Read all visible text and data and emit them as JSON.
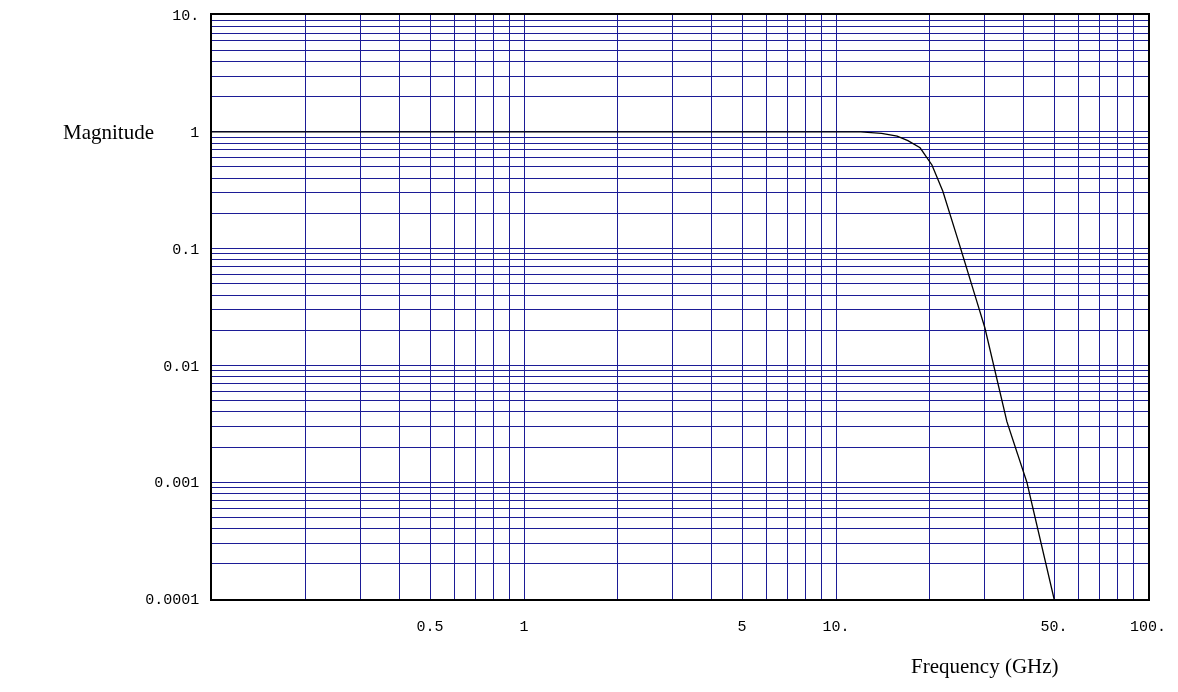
{
  "chart_data": {
    "type": "line",
    "xlabel": "Frequency (GHz)",
    "ylabel": "Magnitude",
    "log": "xy",
    "grid": true,
    "marker": "none",
    "line_style": "solid",
    "xlim": [
      0.1,
      100
    ],
    "ylim": [
      0.0001,
      10
    ],
    "xticks": [
      {
        "value": 0.2,
        "label": null
      },
      {
        "value": 0.3,
        "label": null
      },
      {
        "value": 0.4,
        "label": null
      },
      {
        "value": 0.5,
        "label": "0.5"
      },
      {
        "value": 0.6,
        "label": null
      },
      {
        "value": 0.7,
        "label": null
      },
      {
        "value": 0.8,
        "label": null
      },
      {
        "value": 0.9,
        "label": null
      },
      {
        "value": 1,
        "label": "1"
      },
      {
        "value": 2,
        "label": null
      },
      {
        "value": 3,
        "label": null
      },
      {
        "value": 4,
        "label": null
      },
      {
        "value": 5,
        "label": "5"
      },
      {
        "value": 6,
        "label": null
      },
      {
        "value": 7,
        "label": null
      },
      {
        "value": 8,
        "label": null
      },
      {
        "value": 9,
        "label": null
      },
      {
        "value": 10,
        "label": "10."
      },
      {
        "value": 20,
        "label": null
      },
      {
        "value": 30,
        "label": null
      },
      {
        "value": 40,
        "label": null
      },
      {
        "value": 50,
        "label": "50."
      },
      {
        "value": 60,
        "label": null
      },
      {
        "value": 70,
        "label": null
      },
      {
        "value": 80,
        "label": null
      },
      {
        "value": 90,
        "label": null
      },
      {
        "value": 100,
        "label": "100."
      }
    ],
    "yticks": [
      0.0001,
      {
        "value": 0.0002,
        "label": null
      },
      {
        "value": 0.0003,
        "label": null
      },
      {
        "value": 0.0004,
        "label": null
      },
      {
        "value": 0.0005,
        "label": null
      },
      {
        "value": 0.0006,
        "label": null
      },
      {
        "value": 0.0007,
        "label": null
      },
      {
        "value": 0.0008,
        "label": null
      },
      {
        "value": 0.0009,
        "label": null
      },
      0.001,
      {
        "value": 0.002,
        "label": null
      },
      {
        "value": 0.003,
        "label": null
      },
      {
        "value": 0.004,
        "label": null
      },
      {
        "value": 0.005,
        "label": null
      },
      {
        "value": 0.006,
        "label": null
      },
      {
        "value": 0.007,
        "label": null
      },
      {
        "value": 0.008,
        "label": null
      },
      {
        "value": 0.009,
        "label": null
      },
      0.01,
      {
        "value": 0.02,
        "label": null
      },
      {
        "value": 0.03,
        "label": null
      },
      {
        "value": 0.04,
        "label": null
      },
      {
        "value": 0.05,
        "label": null
      },
      {
        "value": 0.06,
        "label": null
      },
      {
        "value": 0.07,
        "label": null
      },
      {
        "value": 0.08,
        "label": null
      },
      {
        "value": 0.09,
        "label": null
      },
      0.1,
      {
        "value": 0.2,
        "label": null
      },
      {
        "value": 0.3,
        "label": null
      },
      {
        "value": 0.4,
        "label": null
      },
      {
        "value": 0.5,
        "label": null
      },
      {
        "value": 0.6,
        "label": null
      },
      {
        "value": 0.7,
        "label": null
      },
      {
        "value": 0.8,
        "label": null
      },
      {
        "value": 0.9,
        "label": null
      },
      1,
      {
        "value": 2,
        "label": null
      },
      {
        "value": 3,
        "label": null
      },
      {
        "value": 4,
        "label": null
      },
      {
        "value": 5,
        "label": null
      },
      {
        "value": 6,
        "label": null
      },
      {
        "value": 7,
        "label": null
      },
      {
        "value": 8,
        "label": null
      },
      {
        "value": 9,
        "label": null
      },
      {
        "value": 10,
        "label": "10."
      }
    ],
    "x": [
      0.1,
      1,
      10,
      12,
      14,
      15.7,
      17,
      18.6,
      20.3,
      22,
      24.9,
      28.3,
      30,
      35.3,
      40.9,
      50
    ],
    "series": [
      {
        "color": "#000000",
        "values": [
          1,
          1,
          1,
          1,
          0.97,
          0.92,
          0.84,
          0.73,
          0.52,
          0.31,
          0.107,
          0.035,
          0.021,
          0.0033,
          0.001,
          0.0001
        ]
      }
    ]
  }
}
